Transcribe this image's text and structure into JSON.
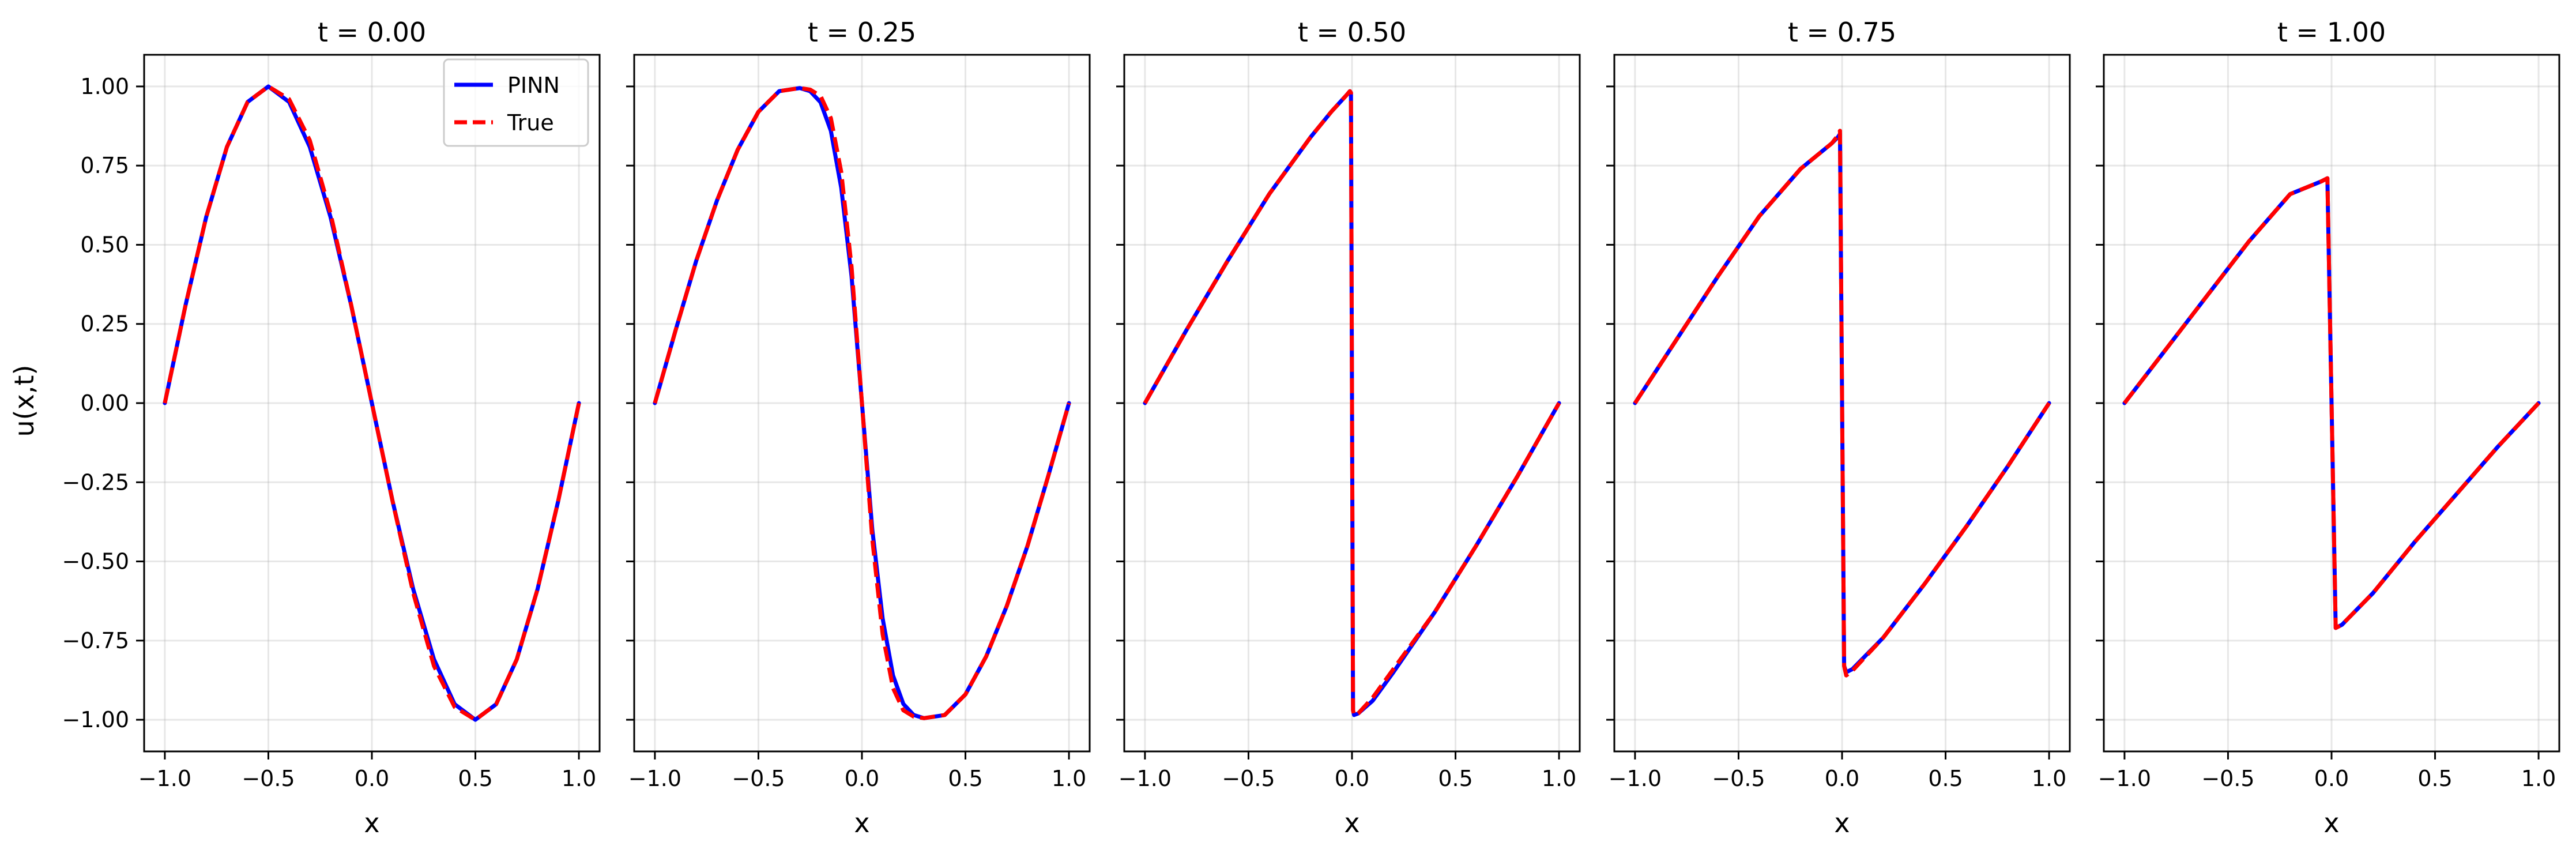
{
  "figure": {
    "ylabel": "u(x,t)",
    "legend": {
      "entries": [
        {
          "label": "PINN",
          "color": "#0000ff",
          "style": "solid"
        },
        {
          "label": "True",
          "color": "#ff0000",
          "style": "dashed"
        }
      ],
      "placement": "top-right",
      "panel": 0
    }
  },
  "chart_data": [
    {
      "type": "line",
      "title": "t = 0.00",
      "xlabel": "x",
      "ylabel": "u(x,t)",
      "xlim": [
        -1.1,
        1.1
      ],
      "ylim": [
        -1.1,
        1.1
      ],
      "grid": true,
      "xticks": [
        -1.0,
        -0.5,
        0.0,
        0.5,
        1.0
      ],
      "xtick_labels": [
        "−1.0",
        "−0.5",
        "0.0",
        "0.5",
        "1.0"
      ],
      "yticks": [
        1.0,
        0.75,
        0.5,
        0.25,
        0.0,
        -0.25,
        -0.5,
        -0.75,
        -1.0
      ],
      "ytick_labels": [
        "1.00",
        "0.75",
        "0.50",
        "0.25",
        "0.00",
        "−0.25",
        "−0.50",
        "−0.75",
        "−1.00"
      ],
      "series": [
        {
          "name": "PINN",
          "color": "#0000ff",
          "style": "solid",
          "x": [
            -1.0,
            -0.9,
            -0.8,
            -0.7,
            -0.6,
            -0.5,
            -0.4,
            -0.3,
            -0.2,
            -0.1,
            0.0,
            0.1,
            0.2,
            0.3,
            0.4,
            0.5,
            0.6,
            0.7,
            0.8,
            0.9,
            1.0
          ],
          "y": [
            0.0,
            0.309,
            0.588,
            0.809,
            0.951,
            1.0,
            0.951,
            0.809,
            0.588,
            0.309,
            0.0,
            -0.309,
            -0.588,
            -0.809,
            -0.951,
            -1.0,
            -0.951,
            -0.809,
            -0.588,
            -0.309,
            0.0
          ]
        },
        {
          "name": "True",
          "color": "#ff0000",
          "style": "dashed",
          "x": [
            -1.0,
            -0.9,
            -0.8,
            -0.7,
            -0.6,
            -0.5,
            -0.4,
            -0.3,
            -0.2,
            -0.1,
            0.0,
            0.1,
            0.2,
            0.3,
            0.4,
            0.5,
            0.6,
            0.7,
            0.8,
            0.9,
            1.0
          ],
          "y": [
            0.0,
            0.309,
            0.588,
            0.809,
            0.951,
            1.0,
            0.96,
            0.83,
            0.6,
            0.31,
            0.0,
            -0.31,
            -0.6,
            -0.83,
            -0.96,
            -1.0,
            -0.951,
            -0.809,
            -0.588,
            -0.309,
            0.0
          ]
        }
      ]
    },
    {
      "type": "line",
      "title": "t = 0.25",
      "xlabel": "x",
      "xlim": [
        -1.1,
        1.1
      ],
      "ylim": [
        -1.1,
        1.1
      ],
      "grid": true,
      "xticks": [
        -1.0,
        -0.5,
        0.0,
        0.5,
        1.0
      ],
      "xtick_labels": [
        "−1.0",
        "−0.5",
        "0.0",
        "0.5",
        "1.0"
      ],
      "yticks": [
        1.0,
        0.75,
        0.5,
        0.25,
        0.0,
        -0.25,
        -0.5,
        -0.75,
        -1.0
      ],
      "series": [
        {
          "name": "PINN",
          "color": "#0000ff",
          "style": "solid",
          "x": [
            -1.0,
            -0.9,
            -0.8,
            -0.7,
            -0.6,
            -0.5,
            -0.4,
            -0.3,
            -0.25,
            -0.2,
            -0.15,
            -0.1,
            -0.05,
            0.0,
            0.05,
            0.1,
            0.15,
            0.2,
            0.25,
            0.3,
            0.4,
            0.5,
            0.6,
            0.7,
            0.8,
            0.9,
            1.0
          ],
          "y": [
            0.0,
            0.23,
            0.45,
            0.64,
            0.8,
            0.92,
            0.985,
            0.995,
            0.985,
            0.95,
            0.86,
            0.68,
            0.4,
            0.0,
            -0.4,
            -0.68,
            -0.86,
            -0.95,
            -0.985,
            -0.995,
            -0.985,
            -0.92,
            -0.8,
            -0.64,
            -0.45,
            -0.23,
            0.0
          ]
        },
        {
          "name": "True",
          "color": "#ff0000",
          "style": "dashed",
          "x": [
            -1.0,
            -0.9,
            -0.8,
            -0.7,
            -0.6,
            -0.5,
            -0.4,
            -0.3,
            -0.25,
            -0.2,
            -0.15,
            -0.1,
            -0.05,
            0.0,
            0.05,
            0.1,
            0.15,
            0.2,
            0.25,
            0.3,
            0.4,
            0.5,
            0.6,
            0.7,
            0.8,
            0.9,
            1.0
          ],
          "y": [
            0.0,
            0.23,
            0.45,
            0.64,
            0.8,
            0.92,
            0.985,
            0.995,
            0.99,
            0.97,
            0.9,
            0.73,
            0.43,
            0.0,
            -0.43,
            -0.73,
            -0.9,
            -0.97,
            -0.99,
            -0.995,
            -0.985,
            -0.92,
            -0.8,
            -0.64,
            -0.45,
            -0.23,
            0.0
          ]
        }
      ]
    },
    {
      "type": "line",
      "title": "t = 0.50",
      "xlabel": "x",
      "xlim": [
        -1.1,
        1.1
      ],
      "ylim": [
        -1.1,
        1.1
      ],
      "grid": true,
      "xticks": [
        -1.0,
        -0.5,
        0.0,
        0.5,
        1.0
      ],
      "xtick_labels": [
        "−1.0",
        "−0.5",
        "0.0",
        "0.5",
        "1.0"
      ],
      "yticks": [
        1.0,
        0.75,
        0.5,
        0.25,
        0.0,
        -0.25,
        -0.5,
        -0.75,
        -1.0
      ],
      "series": [
        {
          "name": "PINN",
          "color": "#0000ff",
          "style": "solid",
          "x": [
            -1.0,
            -0.8,
            -0.6,
            -0.4,
            -0.2,
            -0.1,
            -0.03,
            -0.01,
            -0.005,
            0.005,
            0.01,
            0.03,
            0.1,
            0.2,
            0.4,
            0.6,
            0.8,
            1.0
          ],
          "y": [
            0.0,
            0.23,
            0.45,
            0.66,
            0.84,
            0.92,
            0.97,
            0.985,
            0.98,
            -0.97,
            -0.985,
            -0.98,
            -0.94,
            -0.85,
            -0.66,
            -0.45,
            -0.23,
            0.0
          ]
        },
        {
          "name": "True",
          "color": "#ff0000",
          "style": "dashed",
          "x": [
            -1.0,
            -0.8,
            -0.6,
            -0.4,
            -0.2,
            -0.1,
            -0.03,
            -0.01,
            -0.005,
            0.005,
            0.01,
            0.03,
            0.1,
            0.2,
            0.4,
            0.6,
            0.8,
            1.0
          ],
          "y": [
            0.0,
            0.23,
            0.45,
            0.66,
            0.84,
            0.92,
            0.97,
            0.985,
            0.98,
            -0.97,
            -0.985,
            -0.98,
            -0.93,
            -0.84,
            -0.66,
            -0.45,
            -0.23,
            0.0
          ]
        }
      ]
    },
    {
      "type": "line",
      "title": "t = 0.75",
      "xlabel": "x",
      "xlim": [
        -1.1,
        1.1
      ],
      "ylim": [
        -1.1,
        1.1
      ],
      "grid": true,
      "xticks": [
        -1.0,
        -0.5,
        0.0,
        0.5,
        1.0
      ],
      "xtick_labels": [
        "−1.0",
        "−0.5",
        "0.0",
        "0.5",
        "1.0"
      ],
      "yticks": [
        1.0,
        0.75,
        0.5,
        0.25,
        0.0,
        -0.25,
        -0.5,
        -0.75,
        -1.0
      ],
      "series": [
        {
          "name": "PINN",
          "color": "#0000ff",
          "style": "solid",
          "x": [
            -1.0,
            -0.8,
            -0.6,
            -0.4,
            -0.2,
            -0.05,
            -0.02,
            -0.01,
            0.01,
            0.02,
            0.05,
            0.2,
            0.4,
            0.6,
            0.8,
            1.0
          ],
          "y": [
            0.0,
            0.2,
            0.4,
            0.59,
            0.74,
            0.82,
            0.84,
            0.85,
            -0.83,
            -0.85,
            -0.84,
            -0.74,
            -0.57,
            -0.39,
            -0.2,
            0.0
          ]
        },
        {
          "name": "True",
          "color": "#ff0000",
          "style": "dashed",
          "x": [
            -1.0,
            -0.8,
            -0.6,
            -0.4,
            -0.2,
            -0.05,
            -0.02,
            -0.01,
            0.01,
            0.02,
            0.05,
            0.2,
            0.4,
            0.6,
            0.8,
            1.0
          ],
          "y": [
            0.0,
            0.2,
            0.4,
            0.59,
            0.74,
            0.82,
            0.845,
            0.86,
            -0.83,
            -0.86,
            -0.845,
            -0.74,
            -0.57,
            -0.39,
            -0.2,
            0.0
          ]
        }
      ]
    },
    {
      "type": "line",
      "title": "t = 1.00",
      "xlabel": "x",
      "xlim": [
        -1.1,
        1.1
      ],
      "ylim": [
        -1.1,
        1.1
      ],
      "grid": true,
      "xticks": [
        -1.0,
        -0.5,
        0.0,
        0.5,
        1.0
      ],
      "xtick_labels": [
        "−1.0",
        "−0.5",
        "0.0",
        "0.5",
        "1.0"
      ],
      "yticks": [
        1.0,
        0.75,
        0.5,
        0.25,
        0.0,
        -0.25,
        -0.5,
        -0.75,
        -1.0
      ],
      "series": [
        {
          "name": "PINN",
          "color": "#0000ff",
          "style": "solid",
          "x": [
            -1.0,
            -0.8,
            -0.6,
            -0.4,
            -0.2,
            -0.05,
            -0.02,
            0.02,
            0.05,
            0.2,
            0.4,
            0.6,
            0.8,
            1.0
          ],
          "y": [
            0.0,
            0.17,
            0.34,
            0.51,
            0.66,
            0.7,
            0.71,
            -0.71,
            -0.7,
            -0.6,
            -0.44,
            -0.29,
            -0.14,
            0.0
          ]
        },
        {
          "name": "True",
          "color": "#ff0000",
          "style": "dashed",
          "x": [
            -1.0,
            -0.8,
            -0.6,
            -0.4,
            -0.2,
            -0.05,
            -0.02,
            0.02,
            0.05,
            0.2,
            0.4,
            0.6,
            0.8,
            1.0
          ],
          "y": [
            0.0,
            0.17,
            0.34,
            0.51,
            0.66,
            0.7,
            0.71,
            -0.71,
            -0.7,
            -0.6,
            -0.44,
            -0.29,
            -0.14,
            0.0
          ]
        }
      ]
    }
  ]
}
